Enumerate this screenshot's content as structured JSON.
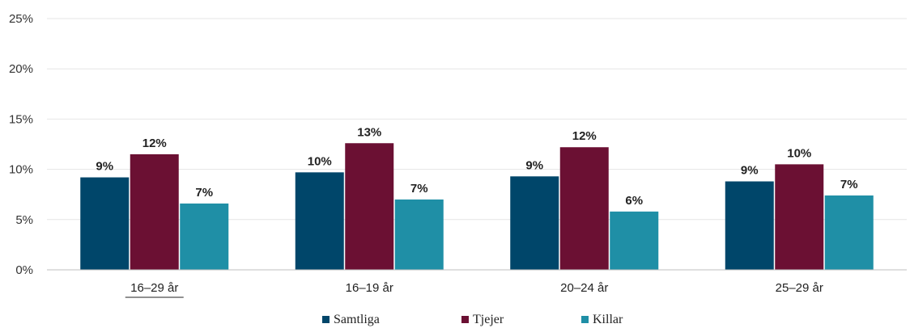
{
  "chart_data": {
    "type": "bar",
    "categories": [
      "16–29 år",
      "16–19 år",
      "20–24 år",
      "25–29 år"
    ],
    "series": [
      {
        "name": "Samtliga",
        "color": "#00466a",
        "values": [
          9.2,
          9.7,
          9.3,
          8.8
        ],
        "labels": [
          "9%",
          "10%",
          "9%",
          "9%"
        ]
      },
      {
        "name": "Tjejer",
        "color": "#6b1033",
        "values": [
          11.5,
          12.6,
          12.2,
          10.5
        ],
        "labels": [
          "12%",
          "13%",
          "12%",
          "10%"
        ]
      },
      {
        "name": "Killar",
        "color": "#1f8fa6",
        "values": [
          6.6,
          7.0,
          5.8,
          7.4
        ],
        "labels": [
          "7%",
          "7%",
          "6%",
          "7%"
        ]
      }
    ],
    "ylim": [
      0,
      25
    ],
    "yticks": [
      "0%",
      "5%",
      "10%",
      "15%",
      "20%",
      "25%"
    ],
    "ytick_values": [
      0,
      5,
      10,
      15,
      20,
      25
    ],
    "grid": true,
    "legend_position": "bottom-center"
  }
}
